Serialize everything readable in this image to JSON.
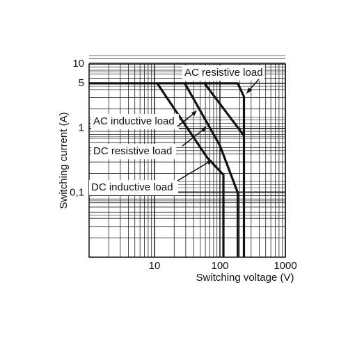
{
  "chart_data": {
    "type": "line",
    "x_label": "Switching voltage (V)",
    "y_label": "Switching current (A)",
    "log_x": true,
    "log_y": true,
    "grid": true,
    "xlim": [
      1,
      1000
    ],
    "ylim": [
      0.01,
      10
    ],
    "xticks": [
      10,
      100,
      1000
    ],
    "yticks": [
      10,
      5,
      1,
      {
        "value": 0.1,
        "label": "0,1"
      }
    ],
    "series": [
      {
        "name": "AC resistive load",
        "color": "#111111",
        "x": [
          1,
          187,
          233,
          233
        ],
        "values": [
          5,
          5,
          3.1,
          0.01
        ]
      },
      {
        "name": "AC inductive load",
        "color": "#111111",
        "x": [
          58,
          233
        ],
        "values": [
          5,
          0.77
        ]
      },
      {
        "name": "DC resistive load",
        "color": "#111111",
        "x": [
          29,
          100,
          187,
          187
        ],
        "values": [
          5,
          0.54,
          0.1,
          0.01
        ]
      },
      {
        "name": "DC inductive load",
        "color": "#111111",
        "x": [
          11,
          64,
          113,
          113
        ],
        "values": [
          5,
          0.35,
          0.19,
          0.01
        ]
      }
    ]
  }
}
